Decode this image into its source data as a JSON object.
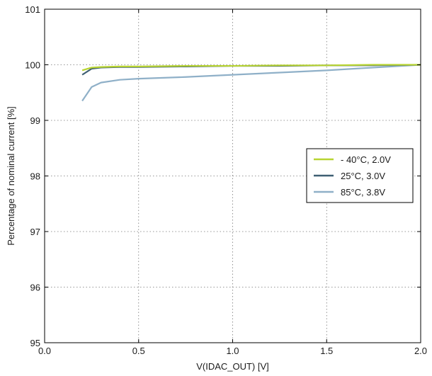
{
  "chart_data": {
    "type": "line",
    "xlabel": "V(IDAC_OUT) [V]",
    "ylabel": "Percentage of nominal current [%]",
    "xlim": [
      0.0,
      2.0
    ],
    "ylim": [
      95,
      101
    ],
    "xticks": [
      "0.0",
      "0.5",
      "1.0",
      "1.5",
      "2.0"
    ],
    "yticks": [
      "95",
      "96",
      "97",
      "98",
      "99",
      "100",
      "101"
    ],
    "grid": true,
    "legend_position": "right",
    "series": [
      {
        "name": "- 40°C, 2.0V",
        "color": "#b8d432",
        "x": [
          0.2,
          0.25,
          0.3,
          0.4,
          0.5,
          0.75,
          1.0,
          1.25,
          1.5,
          1.75,
          2.0
        ],
        "y": [
          99.9,
          99.95,
          99.96,
          99.97,
          99.97,
          99.98,
          99.98,
          99.99,
          99.99,
          100.0,
          100.0
        ]
      },
      {
        "name": "25°C, 3.0V",
        "color": "#3e5f73",
        "x": [
          0.2,
          0.25,
          0.3,
          0.4,
          0.5,
          0.75,
          1.0,
          1.25,
          1.5,
          1.75,
          2.0
        ],
        "y": [
          99.82,
          99.93,
          99.95,
          99.96,
          99.96,
          99.97,
          99.98,
          99.98,
          99.99,
          99.99,
          100.0
        ]
      },
      {
        "name": "85°C, 3.8V",
        "color": "#8fb0c8",
        "x": [
          0.2,
          0.25,
          0.3,
          0.4,
          0.5,
          0.75,
          1.0,
          1.25,
          1.5,
          1.75,
          2.0
        ],
        "y": [
          99.35,
          99.6,
          99.68,
          99.73,
          99.75,
          99.78,
          99.82,
          99.86,
          99.9,
          99.95,
          100.0
        ]
      }
    ]
  }
}
